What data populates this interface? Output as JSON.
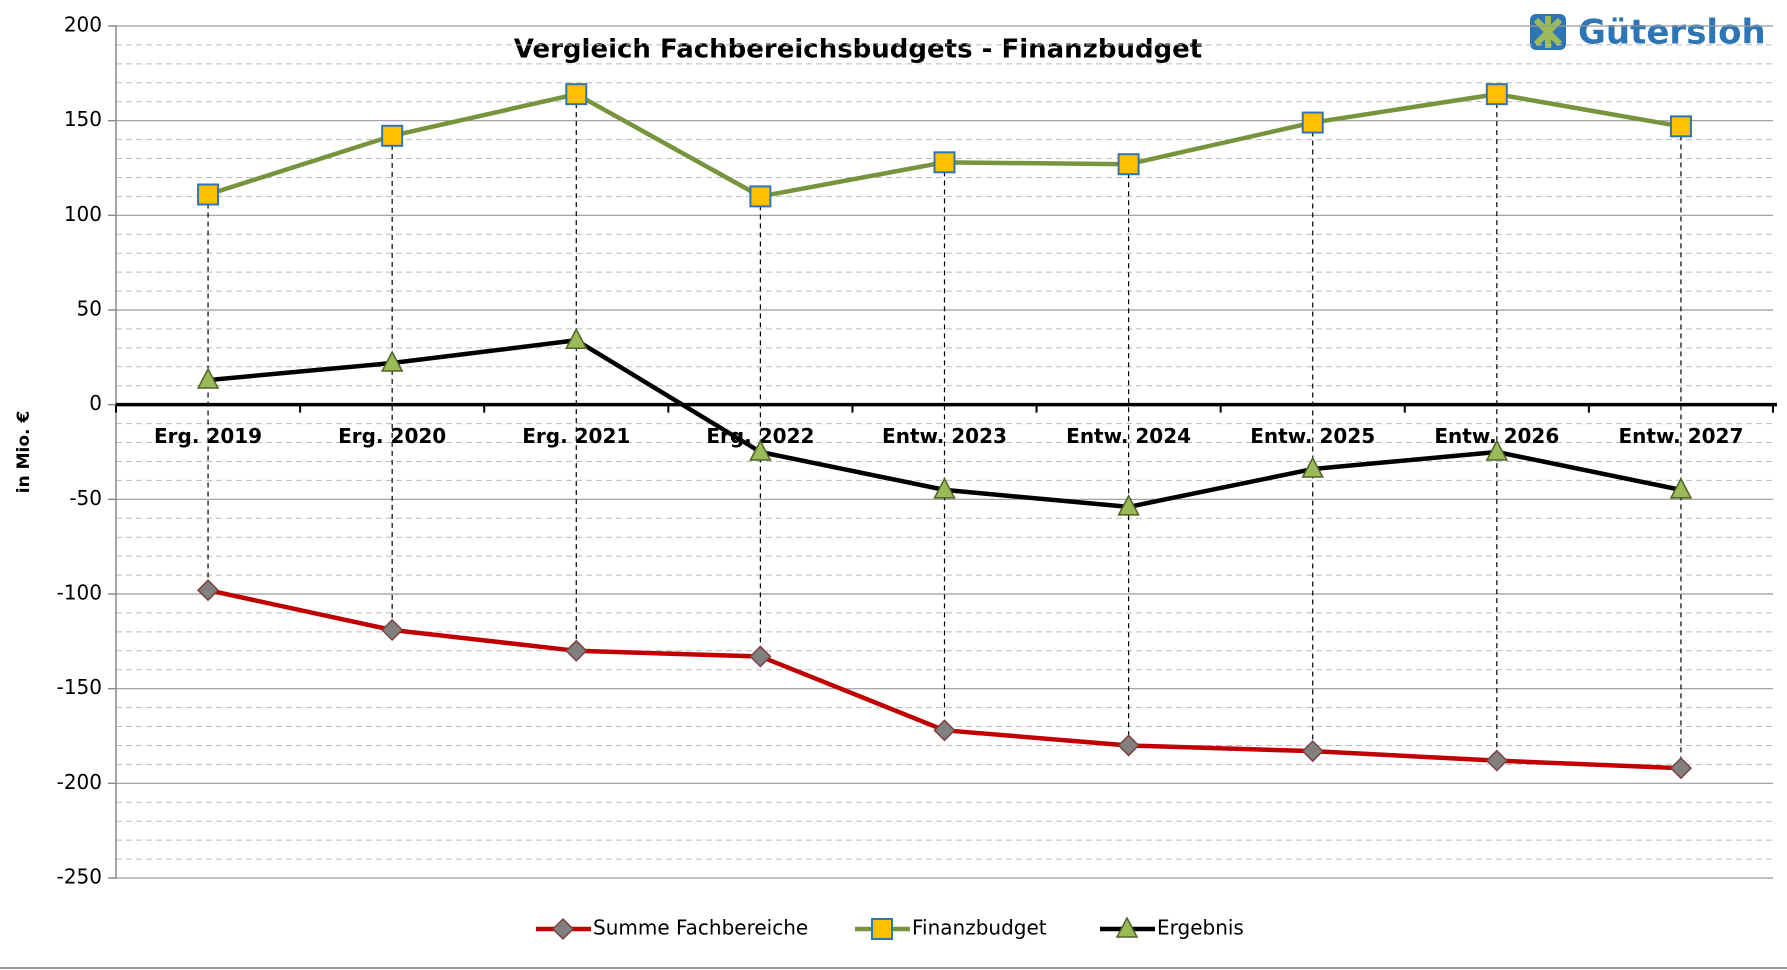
{
  "chart_data": {
    "type": "line",
    "title": "Vergleich Fachbereichsbudgets - Finanzbudget",
    "logo": "Gütersloh",
    "ylabel": "in Mio. €",
    "categories": [
      "Erg. 2019",
      "Erg. 2020",
      "Erg. 2021",
      "Erg. 2022",
      "Entw. 2023",
      "Entw. 2024",
      "Entw. 2025",
      "Entw. 2026",
      "Entw. 2027"
    ],
    "series": [
      {
        "name": "Summe Fachbereiche",
        "color": "#c00000",
        "marker": "diamond",
        "marker_color": "#808080",
        "values": [
          -98,
          -119,
          -130,
          -133,
          -172,
          -180,
          -183,
          -188,
          -192
        ]
      },
      {
        "name": "Finanzbudget",
        "color": "#77933c",
        "marker": "square",
        "marker_color": "#ffc000",
        "values": [
          111,
          142,
          164,
          110,
          128,
          127,
          149,
          164,
          147
        ]
      },
      {
        "name": "Ergebnis",
        "color": "#000000",
        "marker": "triangle",
        "marker_color": "#9bbb59",
        "values": [
          13,
          22,
          34,
          -25,
          -45,
          -54,
          -34,
          -25,
          -45
        ]
      }
    ],
    "ylim": [
      -250,
      200
    ],
    "yticks": [
      -250,
      -200,
      -150,
      -100,
      -50,
      0,
      50,
      100,
      150,
      200
    ],
    "grid": true,
    "minor_grid_step": 10,
    "drop_lines": true,
    "legend": "bottom"
  }
}
